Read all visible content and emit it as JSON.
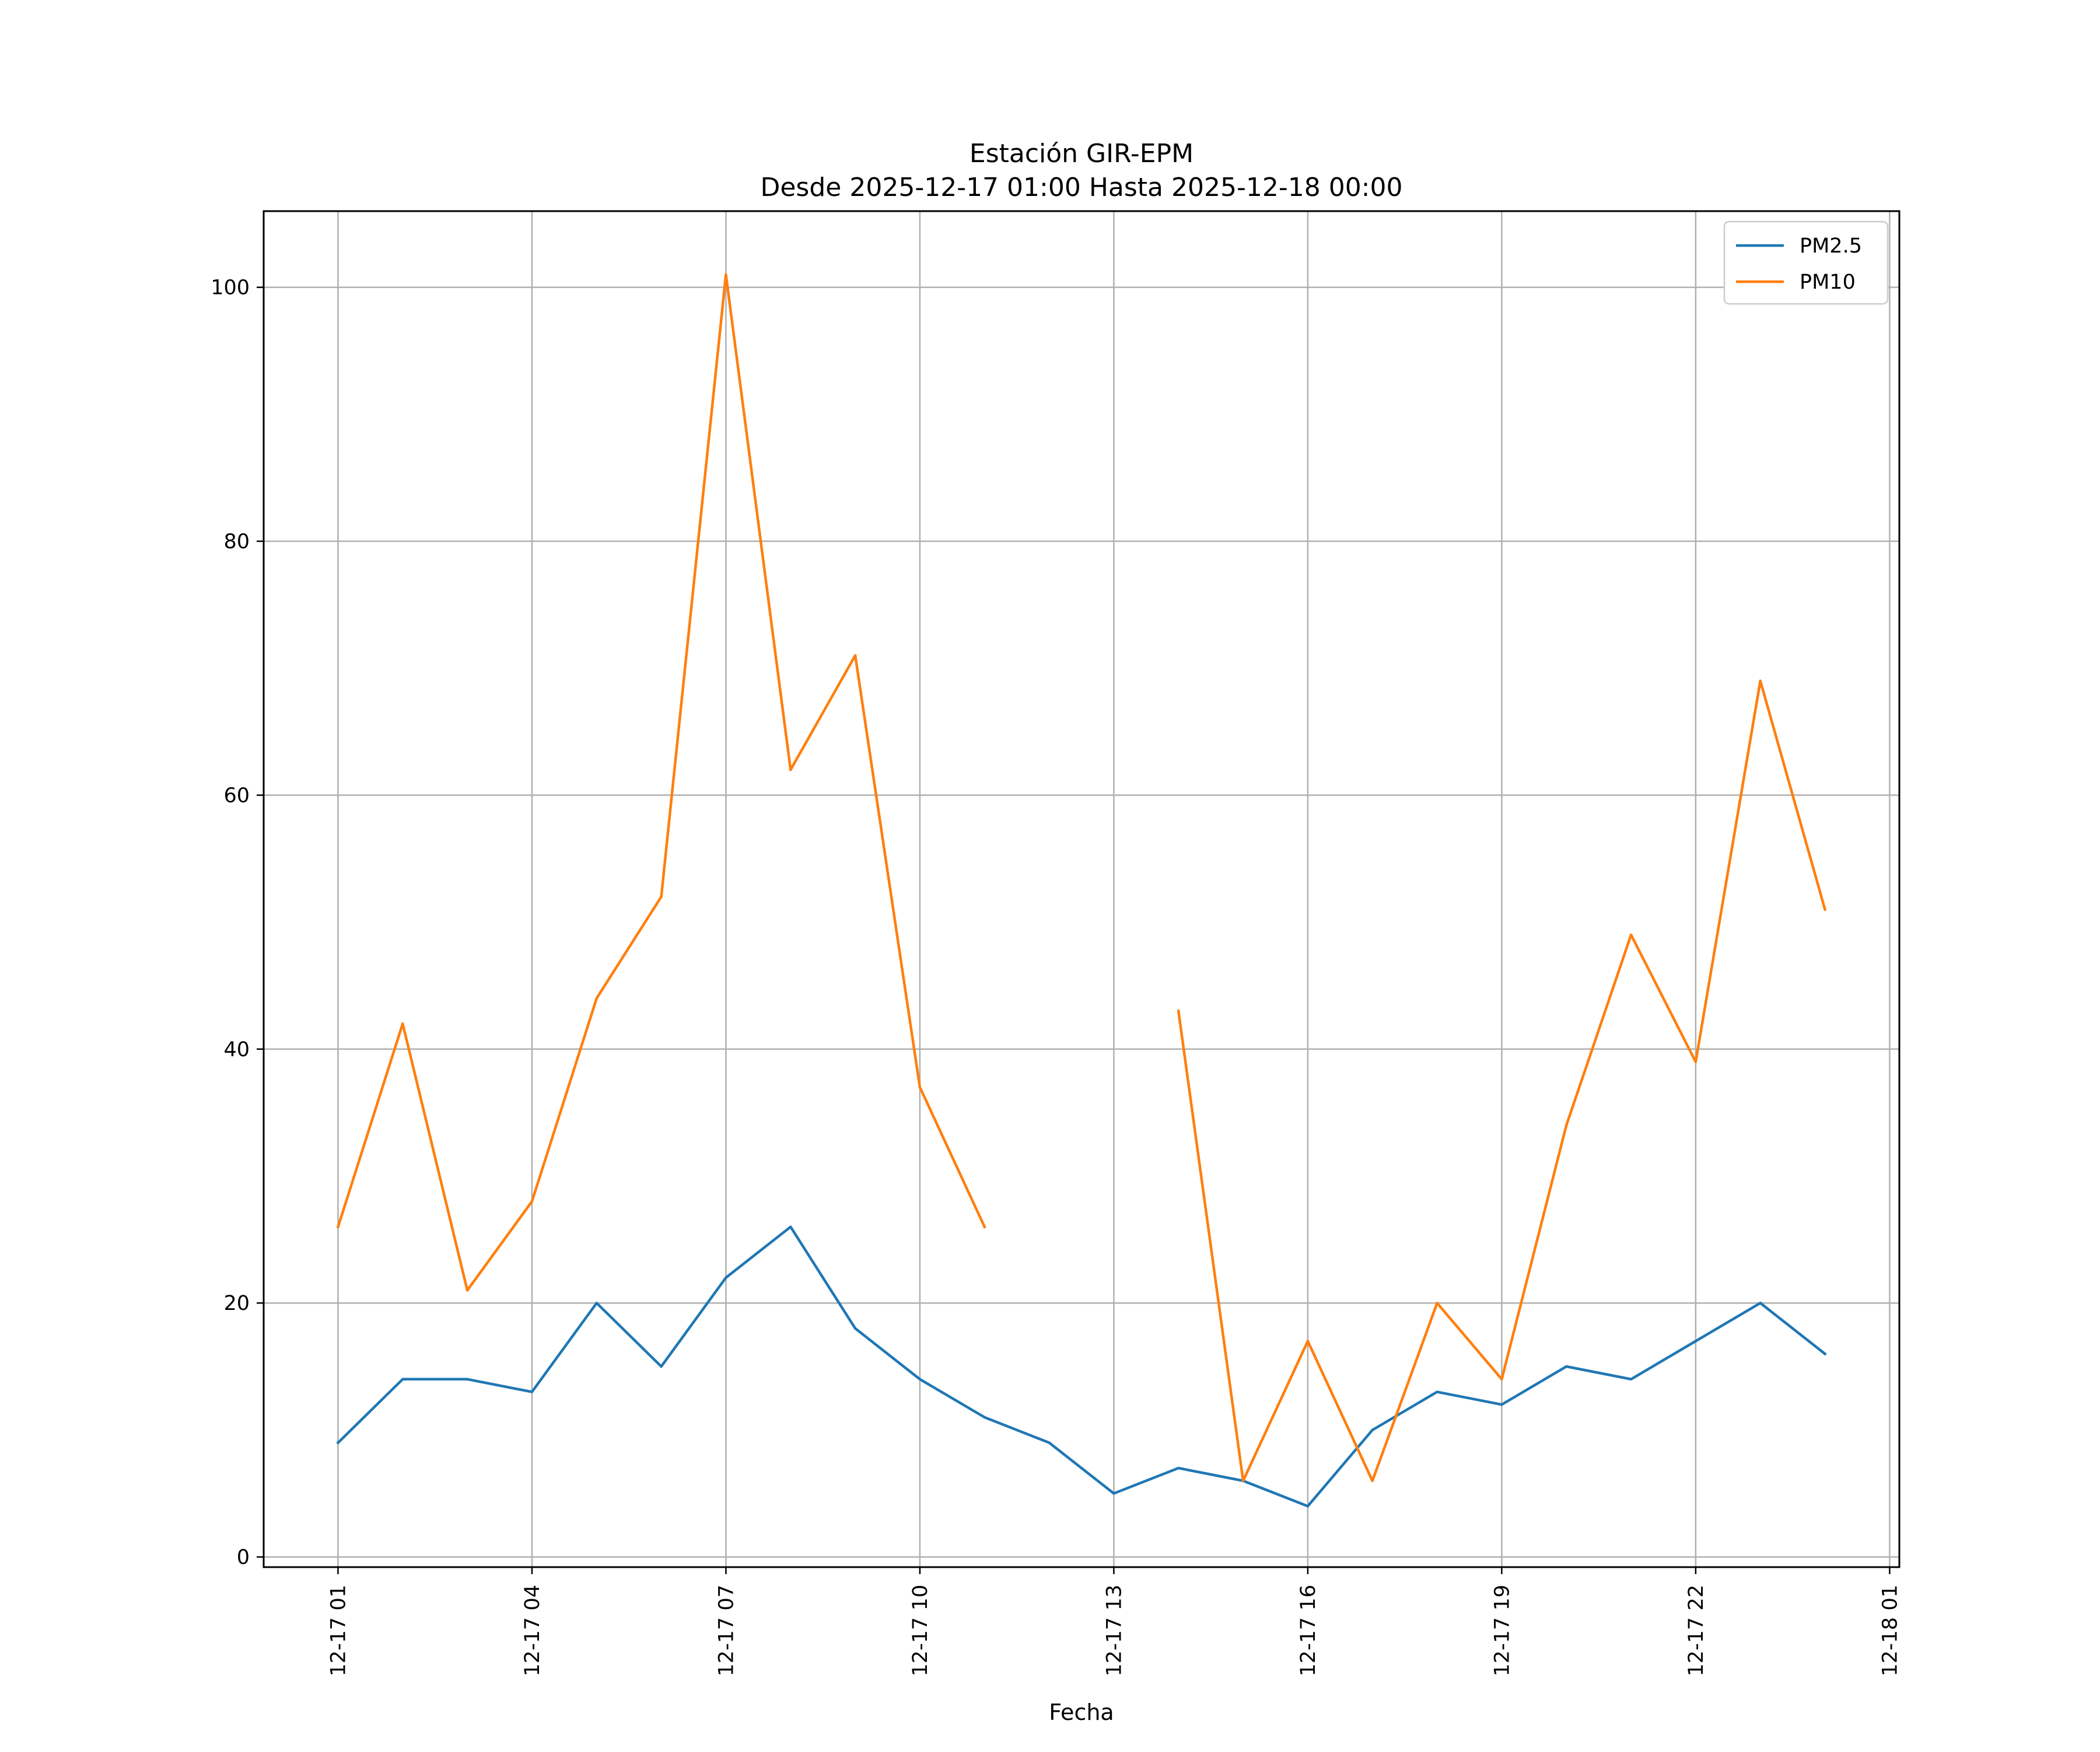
{
  "chart_data": {
    "type": "line",
    "title": "Estación GIR-EPM",
    "subtitle": "Desde 2025-12-17 01:00 Hasta 2025-12-18 00:00",
    "xlabel": "Fecha",
    "ylabel": "",
    "x": [
      "2025-12-17 01:00",
      "2025-12-17 02:00",
      "2025-12-17 03:00",
      "2025-12-17 04:00",
      "2025-12-17 05:00",
      "2025-12-17 06:00",
      "2025-12-17 07:00",
      "2025-12-17 08:00",
      "2025-12-17 09:00",
      "2025-12-17 10:00",
      "2025-12-17 11:00",
      "2025-12-17 12:00",
      "2025-12-17 13:00",
      "2025-12-17 14:00",
      "2025-12-17 15:00",
      "2025-12-17 16:00",
      "2025-12-17 17:00",
      "2025-12-17 18:00",
      "2025-12-17 19:00",
      "2025-12-17 20:00",
      "2025-12-17 21:00",
      "2025-12-17 22:00",
      "2025-12-17 23:00",
      "2025-12-18 00:00"
    ],
    "x_hours": [
      0,
      1,
      2,
      3,
      4,
      5,
      6,
      7,
      8,
      9,
      10,
      11,
      12,
      13,
      14,
      15,
      16,
      17,
      18,
      19,
      20,
      21,
      22,
      23
    ],
    "xlim_hours": [
      -1.15,
      24.15
    ],
    "ylim": [
      -0.8,
      106
    ],
    "xticks": {
      "hours": [
        0,
        3,
        6,
        9,
        12,
        15,
        18,
        21,
        24
      ],
      "labels": [
        "12-17 01",
        "12-17 04",
        "12-17 07",
        "12-17 10",
        "12-17 13",
        "12-17 16",
        "12-17 19",
        "12-17 22",
        "12-18 01"
      ]
    },
    "yticks": {
      "values": [
        0,
        20,
        40,
        60,
        80,
        100
      ],
      "labels": [
        "0",
        "20",
        "40",
        "60",
        "80",
        "100"
      ]
    },
    "grid": true,
    "legend_position": "top-right",
    "series": [
      {
        "name": "PM2.5",
        "color": "#1f77b4",
        "values": [
          9,
          14,
          14,
          13,
          20,
          15,
          22,
          26,
          18,
          14,
          11,
          9,
          5,
          7,
          6,
          4,
          10,
          13,
          12,
          15,
          14,
          17,
          20,
          16
        ]
      },
      {
        "name": "PM10",
        "color": "#ff7f0e",
        "values": [
          26,
          42,
          21,
          28,
          44,
          52,
          101,
          62,
          71,
          37,
          26,
          null,
          null,
          43,
          6,
          17,
          6,
          20,
          14,
          34,
          49,
          39,
          69,
          51
        ]
      }
    ]
  }
}
